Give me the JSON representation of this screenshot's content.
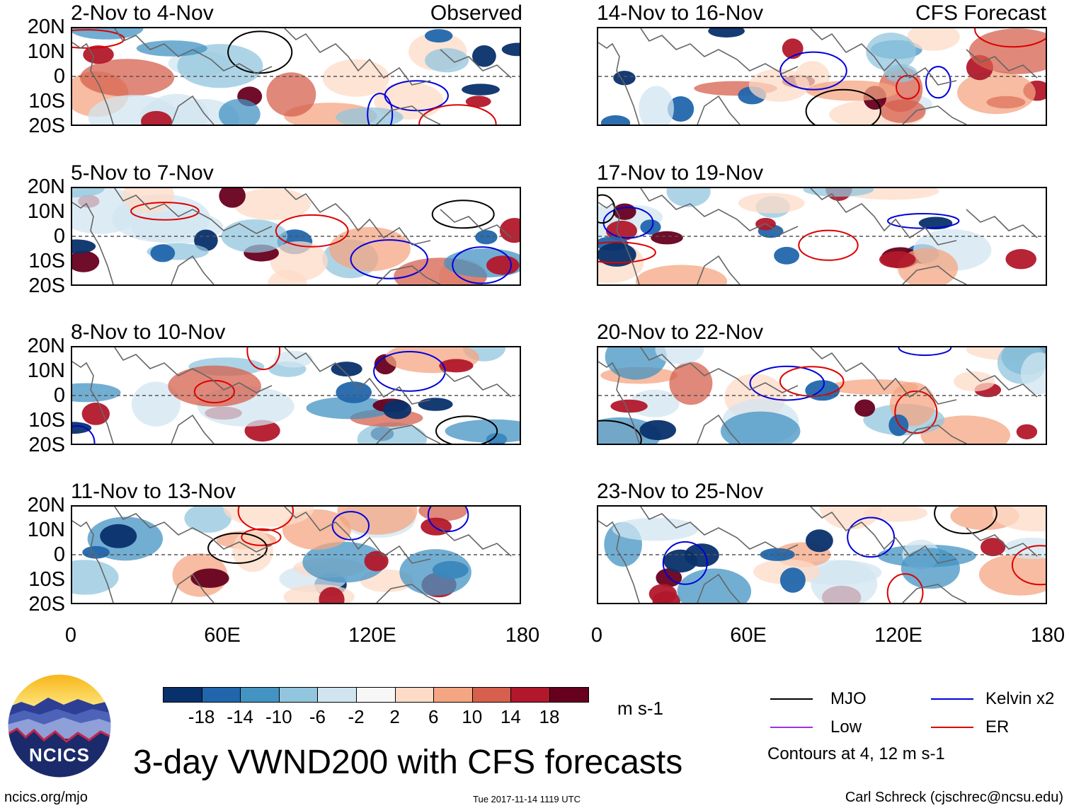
{
  "title": "3-day VWND200 with CFS forecasts",
  "footer": {
    "left": "ncics.org/mjo",
    "center": "Tue 2017-11-14 1119 UTC",
    "right": "Carl Schreck (cjschrec@ncsu.edu)"
  },
  "logo": {
    "text": "NCICS"
  },
  "columns": {
    "left_tag": "Observed",
    "right_tag": "CFS Forecast"
  },
  "panels_left": [
    "2-Nov to 4-Nov",
    "5-Nov to 7-Nov",
    "8-Nov to 10-Nov",
    "11-Nov to 13-Nov"
  ],
  "panels_right": [
    "14-Nov to 16-Nov",
    "17-Nov to 19-Nov",
    "20-Nov to 22-Nov",
    "23-Nov to 25-Nov"
  ],
  "lat_labels": [
    "20N",
    "10N",
    "0",
    "10S",
    "20S"
  ],
  "lon_labels": [
    "0",
    "60E",
    "120E",
    "180"
  ],
  "colorbar": {
    "colors": [
      "#08306b",
      "#2166ac",
      "#4393c3",
      "#92c5de",
      "#d1e5f0",
      "#f7f7f7",
      "#fddbc7",
      "#f4a582",
      "#d6604d",
      "#b2182b",
      "#67001f"
    ],
    "labels": [
      "-18",
      "-14",
      "-10",
      "-6",
      "-2",
      "2",
      "6",
      "10",
      "14",
      "18"
    ],
    "units": "m s-1"
  },
  "legend": {
    "items": [
      {
        "label": "MJO",
        "color": "#000000"
      },
      {
        "label": "Kelvin x2",
        "color": "#0000dd"
      },
      {
        "label": "Low",
        "color": "#9933ee"
      },
      {
        "label": "ER",
        "color": "#dd0000"
      }
    ],
    "note": "Contours at 4, 12 m s-1"
  }
}
